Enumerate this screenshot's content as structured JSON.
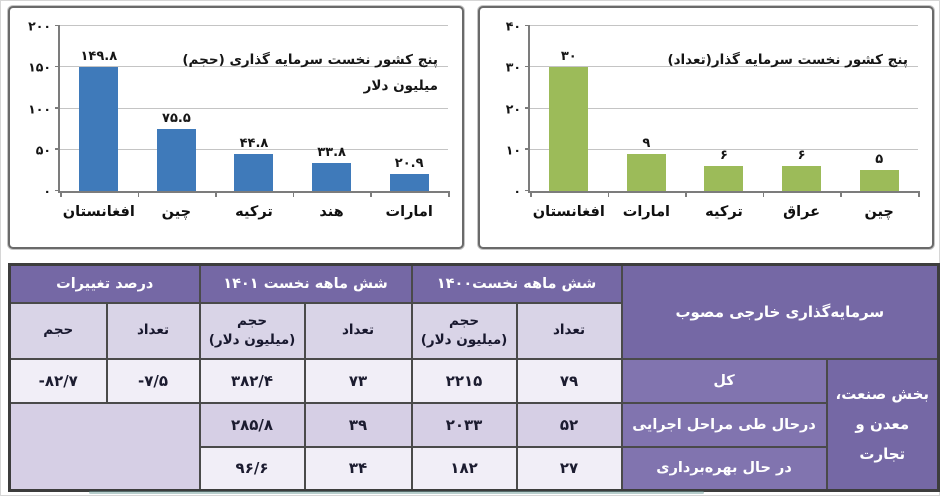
{
  "colors": {
    "bar_blue": "#3f7aba",
    "bar_green": "#9cbb59",
    "header_purple": "#7568a5",
    "row_label_purple": "#8174af",
    "subheader_lavender": "#d9d4e7",
    "row_light": "#f1eef7",
    "row_mid": "#d6cfe5",
    "border_dark": "#4a4a4a"
  },
  "chart_data": [
    {
      "type": "bar",
      "title": "پنج کشور نخست سرمایه گذاری (حجم) میلیون دلار",
      "title_lines": [
        "پنج کشور نخست سرمایه گذاری (حجم)",
        "میلیون دلار"
      ],
      "categories": [
        "افغانستان",
        "چین",
        "ترکیه",
        "هند",
        "امارات"
      ],
      "values": [
        149.8,
        75.5,
        44.8,
        33.8,
        20.9
      ],
      "value_labels": [
        "۱۴۹.۸",
        "۷۵.۵",
        "۴۴.۸",
        "۳۳.۸",
        "۲۰.۹"
      ],
      "xlabel": "",
      "ylabel": "",
      "ylim": [
        0,
        200
      ],
      "yticks": [
        200,
        150,
        100,
        50,
        0
      ],
      "ytick_labels": [
        "۲۰۰",
        "۱۵۰",
        "۱۰۰",
        "۵۰",
        "۰"
      ],
      "bar_color": "#3f7aba",
      "grid": true,
      "legend": "none"
    },
    {
      "type": "bar",
      "title": "پنج کشور نخست سرمایه گذار(تعداد)",
      "title_lines": [
        "پنج کشور نخست سرمایه گذار(تعداد)"
      ],
      "categories": [
        "افغانستان",
        "امارات",
        "ترکیه",
        "عراق",
        "چین"
      ],
      "values": [
        30,
        9,
        6,
        6,
        5
      ],
      "value_labels": [
        "۳۰",
        "۹",
        "۶",
        "۶",
        "۵"
      ],
      "xlabel": "",
      "ylabel": "",
      "ylim": [
        0,
        40
      ],
      "yticks": [
        40,
        30,
        20,
        10,
        0
      ],
      "ytick_labels": [
        "۴۰",
        "۳۰",
        "۲۰",
        "۱۰",
        "۰"
      ],
      "bar_color": "#9cbb59",
      "grid": true,
      "legend": "none"
    }
  ],
  "table": {
    "group_headers": {
      "approved": "سرمایه‌گذاری خارجی مصوب",
      "h1400": "شش ماهه نخست۱۴۰۰",
      "h1401": "شش ماهه نخست ۱۴۰۱",
      "percent_changes": "درصد تغییرات"
    },
    "sub_headers": {
      "count": "تعداد",
      "volume": "حجم",
      "volume_musd_line2": "(میلیون دلار)"
    },
    "sector_label": "بخش صنعت، معدن و تجارت",
    "rows": [
      {
        "label": "کل",
        "count_1400": "۷۹",
        "volume_1400": "۲۲۱۵",
        "count_1401": "۷۳",
        "volume_1401": "۳۸۲/۴",
        "count_change": "-۷/۵",
        "volume_change": "-۸۲/۷"
      },
      {
        "label": "درحال طی مراحل اجرایی",
        "count_1400": "۵۲",
        "volume_1400": "۲۰۳۳",
        "count_1401": "۳۹",
        "volume_1401": "۲۸۵/۸"
      },
      {
        "label": "در حال بهره‌برداری",
        "count_1400": "۲۷",
        "volume_1400": "۱۸۲",
        "count_1401": "۳۴",
        "volume_1401": "۹۶/۶"
      }
    ]
  }
}
